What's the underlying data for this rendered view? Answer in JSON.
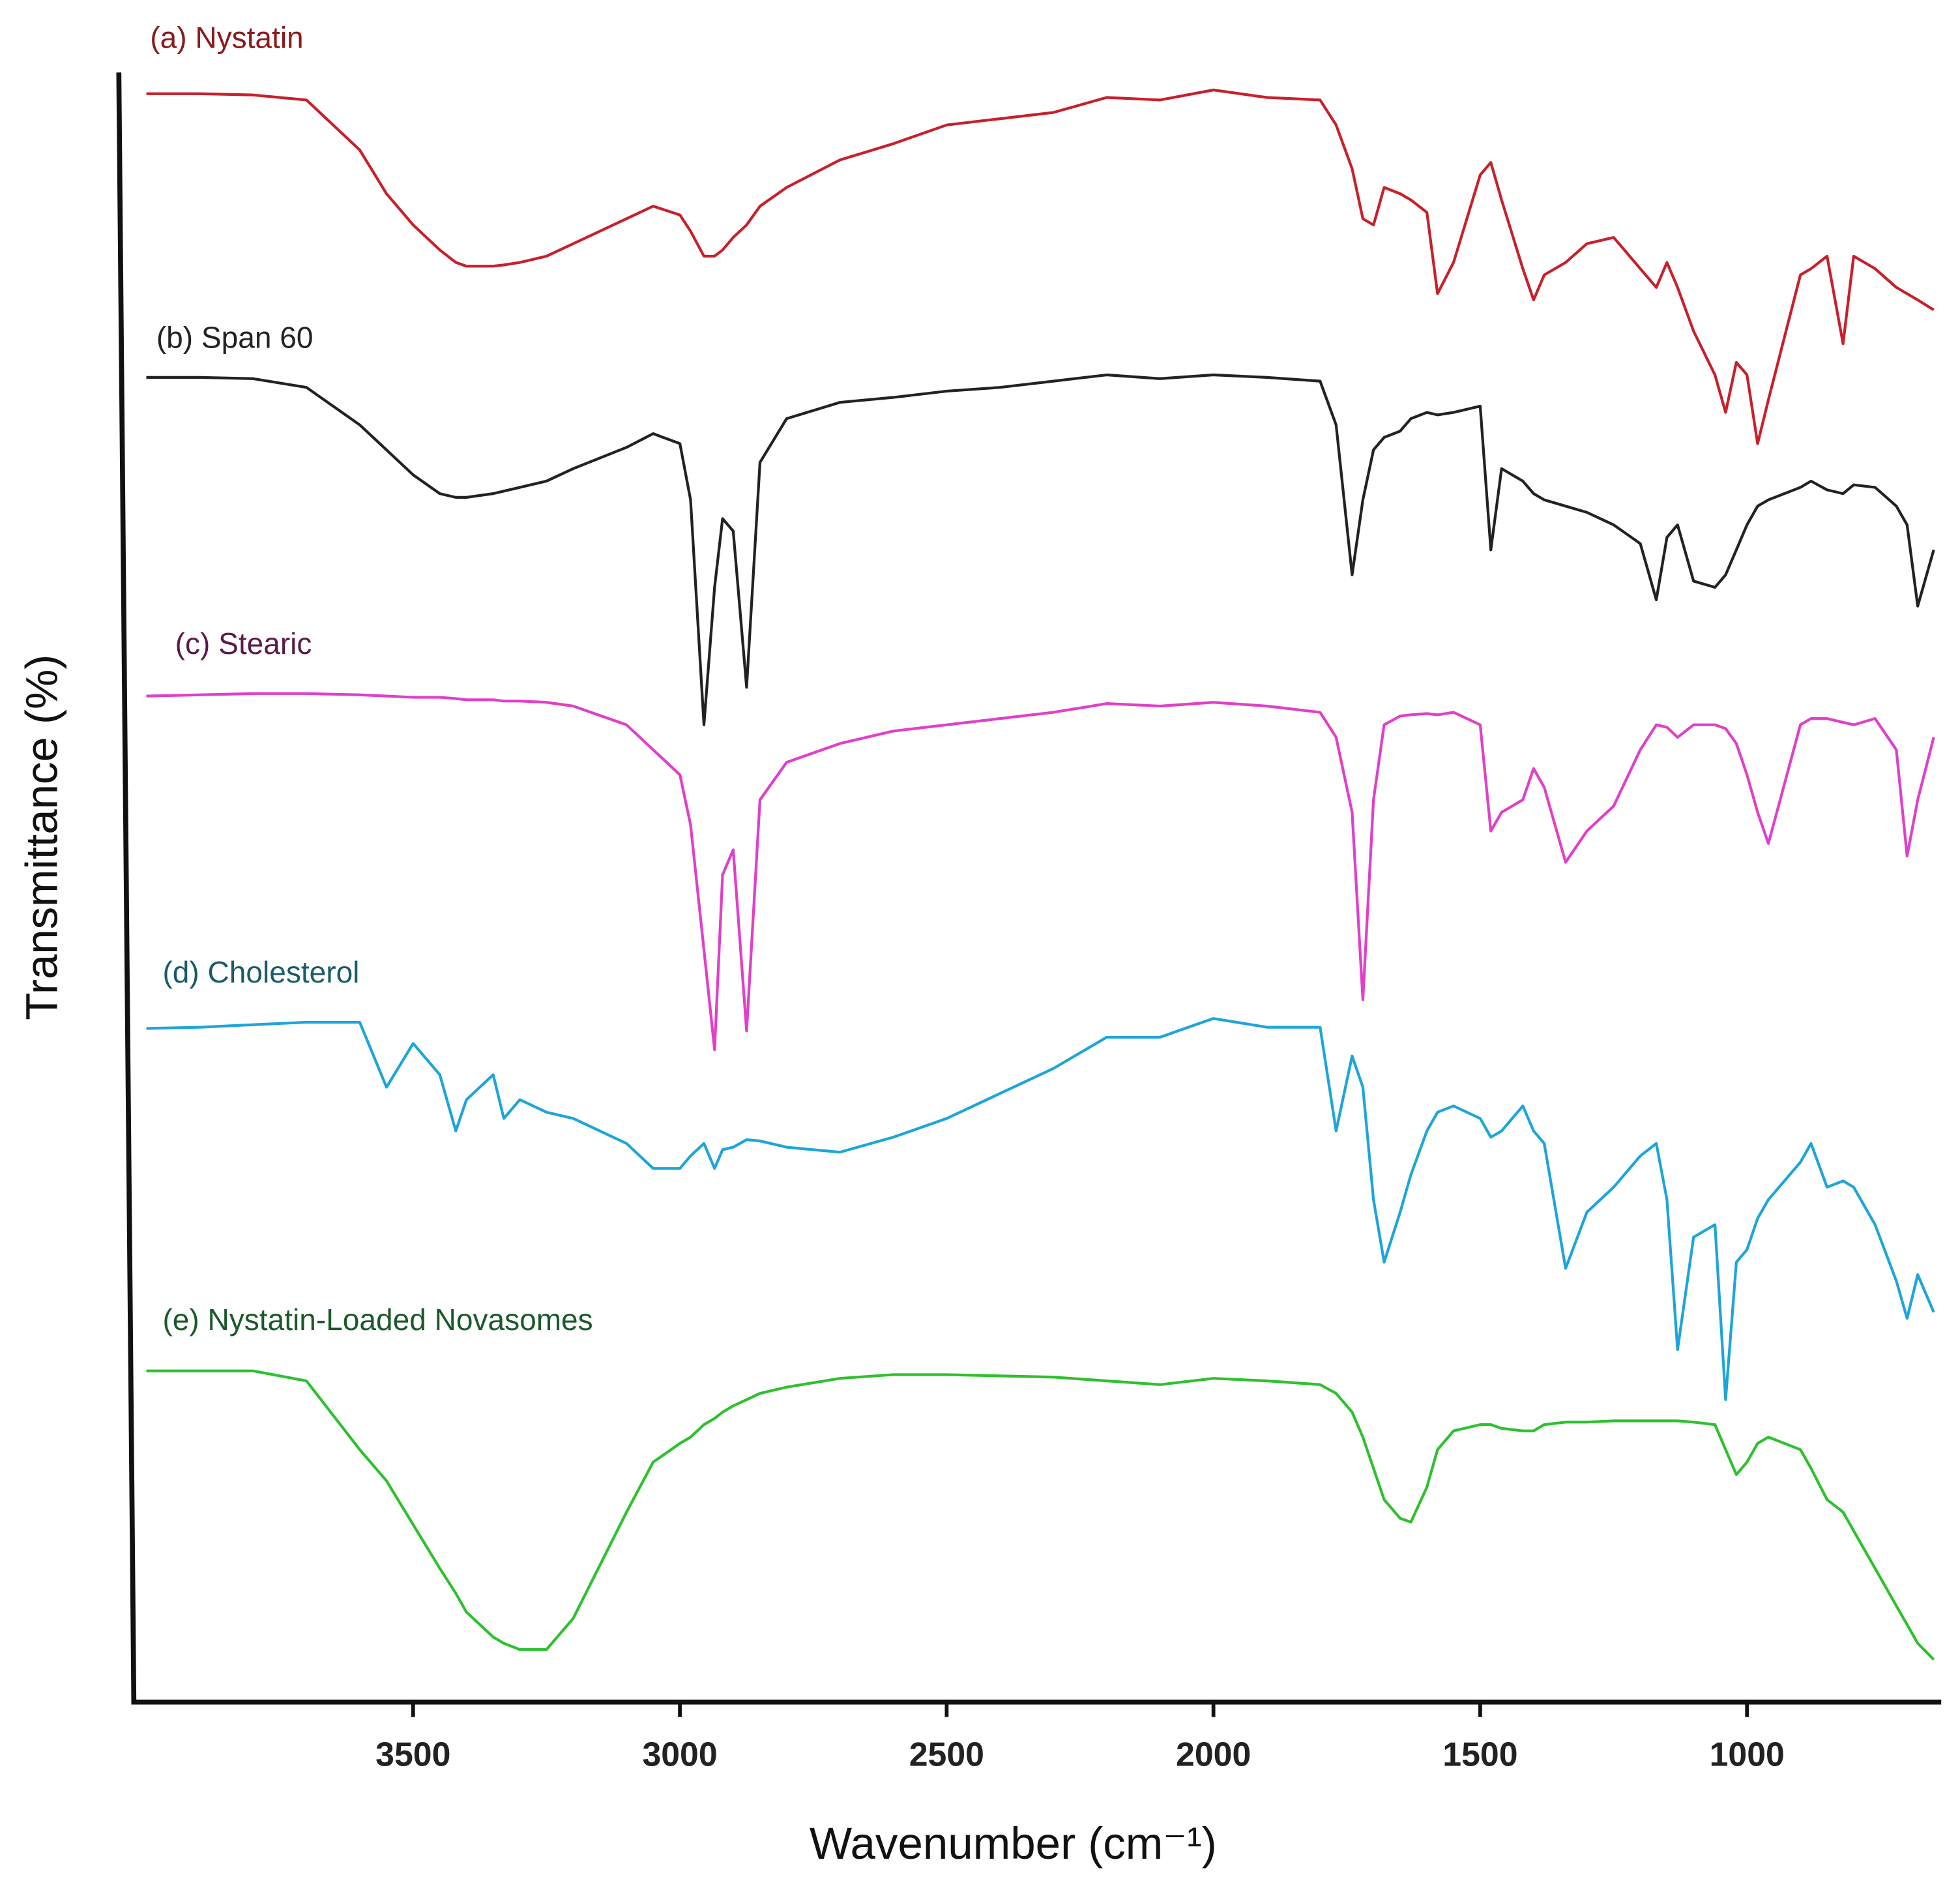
{
  "chart_data": {
    "type": "line",
    "xlabel": "Wavenumber (cm⁻¹)",
    "ylabel": "Transmittance (%)",
    "x": [
      4000,
      3900,
      3800,
      3700,
      3600,
      3550,
      3500,
      3450,
      3420,
      3400,
      3350,
      3330,
      3300,
      3250,
      3200,
      3100,
      3050,
      3000,
      2980,
      2955,
      2935,
      2920,
      2900,
      2875,
      2850,
      2800,
      2700,
      2600,
      2500,
      2400,
      2300,
      2200,
      2100,
      2000,
      1900,
      1800,
      1770,
      1740,
      1720,
      1700,
      1680,
      1650,
      1630,
      1600,
      1580,
      1550,
      1500,
      1480,
      1460,
      1420,
      1400,
      1380,
      1340,
      1300,
      1250,
      1200,
      1170,
      1150,
      1130,
      1100,
      1060,
      1040,
      1020,
      1000,
      980,
      960,
      900,
      880,
      850,
      820,
      800,
      760,
      720,
      700,
      680,
      650
    ],
    "xlim": [
      4000,
      650
    ],
    "xticks": [
      3500,
      3000,
      2500,
      2000,
      1500,
      1000
    ],
    "ylim": [
      0,
      130
    ],
    "series": [
      {
        "name": "(a) Nystatin",
        "color": "#c8202a",
        "label_color": "#8b1a1a",
        "values": [
          128.5,
          128.5,
          128.4,
          128,
          124,
          120.5,
          118,
          116,
          115,
          114.7,
          114.7,
          114.8,
          115,
          115.5,
          116.5,
          118.5,
          119.5,
          118.8,
          117.5,
          115.5,
          115.5,
          116,
          117,
          118,
          119.5,
          121,
          123.2,
          124.5,
          126,
          126.5,
          127,
          128.2,
          128,
          128.8,
          128.2,
          128,
          126,
          122.5,
          118.5,
          118,
          121,
          120.5,
          120,
          119,
          112.5,
          115,
          122,
          123,
          120,
          114.5,
          112,
          114,
          115,
          116.5,
          117,
          114.5,
          113,
          115,
          113,
          109.5,
          106,
          103,
          107,
          106,
          100.5,
          104,
          114,
          114.5,
          115.5,
          108.5,
          115.5,
          114.5,
          113,
          112.5,
          112,
          111.2
        ]
      },
      {
        "name": "(b) Span 60",
        "color": "#222222",
        "label_color": "#222222",
        "values": [
          105.8,
          105.8,
          105.7,
          105,
          102,
          100,
          98,
          96.5,
          96.2,
          96.2,
          96.5,
          96.7,
          97,
          97.5,
          98.5,
          100.2,
          101.3,
          100.5,
          96,
          78,
          89,
          94.5,
          93.5,
          81,
          99,
          102.5,
          103.8,
          104.2,
          104.7,
          105,
          105.5,
          106,
          105.7,
          106,
          105.8,
          105.5,
          102,
          90,
          96,
          100,
          101,
          101.5,
          102.5,
          103,
          102.8,
          103,
          103.5,
          92,
          98.5,
          97.5,
          96.5,
          96,
          95.5,
          95,
          94,
          92.5,
          88,
          93,
          94,
          89.5,
          89,
          90,
          92,
          94,
          95.5,
          96,
          97,
          97.5,
          96.8,
          96.5,
          97.2,
          97,
          95.5,
          94,
          87.5,
          92
        ]
      },
      {
        "name": "(c) Stearic",
        "color": "#e040c8",
        "label_color": "#5a1a4a",
        "values": [
          80.3,
          80.4,
          80.5,
          80.5,
          80.4,
          80.3,
          80.2,
          80.2,
          80.1,
          80,
          80,
          79.9,
          79.9,
          79.8,
          79.5,
          78,
          76,
          74,
          70,
          60,
          52,
          66,
          68,
          53.5,
          72,
          75,
          76.5,
          77.5,
          78,
          78.5,
          79,
          79.7,
          79.5,
          79.8,
          79.5,
          79,
          77,
          71,
          56,
          72,
          78,
          78.7,
          78.8,
          78.9,
          78.8,
          79,
          78,
          69.5,
          71,
          72,
          74.5,
          73,
          67,
          69.5,
          71.5,
          76,
          78,
          77.8,
          77,
          78,
          78,
          77.7,
          76.5,
          74,
          71,
          68.5,
          78,
          78.5,
          78.5,
          78.2,
          78,
          78.5,
          76,
          67.5,
          72,
          77
        ]
      },
      {
        "name": "(d) Cholesterol",
        "color": "#1ea5d8",
        "label_color": "#1a5a6a",
        "values": [
          53.7,
          53.8,
          54,
          54.2,
          54.2,
          49,
          52.5,
          50,
          45.5,
          48,
          50,
          46.5,
          48,
          47,
          46.5,
          44.5,
          42.5,
          42.5,
          43.5,
          44.5,
          42.5,
          44,
          44.2,
          44.8,
          44.7,
          44.2,
          43.8,
          45,
          46.5,
          48.5,
          50.5,
          53,
          53,
          54.5,
          53.8,
          53.8,
          45.5,
          51.5,
          49,
          40,
          35,
          39,
          42,
          45.5,
          47,
          47.5,
          46.5,
          45,
          45.5,
          47.5,
          45.5,
          44.5,
          34.5,
          39,
          41,
          43.5,
          44.5,
          40,
          28,
          37,
          38,
          24,
          35,
          36,
          38.5,
          40,
          43,
          44.5,
          41,
          41.5,
          41,
          38,
          33.5,
          30.5,
          34,
          31
        ]
      },
      {
        "name": "(e) Nystatin-Loaded Novasomes",
        "color": "#2fc02f",
        "label_color": "#1a5a2a",
        "values": [
          26.3,
          26.3,
          26.3,
          25.5,
          20,
          17.5,
          14,
          10.5,
          8.5,
          7,
          5,
          4.5,
          4,
          4,
          6.5,
          15,
          19,
          20.5,
          21,
          22,
          22.5,
          23,
          23.5,
          24,
          24.5,
          25,
          25.7,
          26,
          26,
          25.9,
          25.8,
          25.5,
          25.2,
          25.7,
          25.5,
          25.2,
          24.5,
          23,
          21,
          18.5,
          16,
          14.5,
          14.2,
          17,
          20,
          21.5,
          22,
          22,
          21.7,
          21.5,
          21.5,
          22,
          22.2,
          22.2,
          22.3,
          22.3,
          22.3,
          22.3,
          22.3,
          22.2,
          22,
          20,
          18,
          19,
          20.5,
          21,
          20,
          18.5,
          16,
          15,
          13.5,
          10.5,
          7.5,
          6,
          4.5,
          3.2
        ]
      }
    ]
  }
}
